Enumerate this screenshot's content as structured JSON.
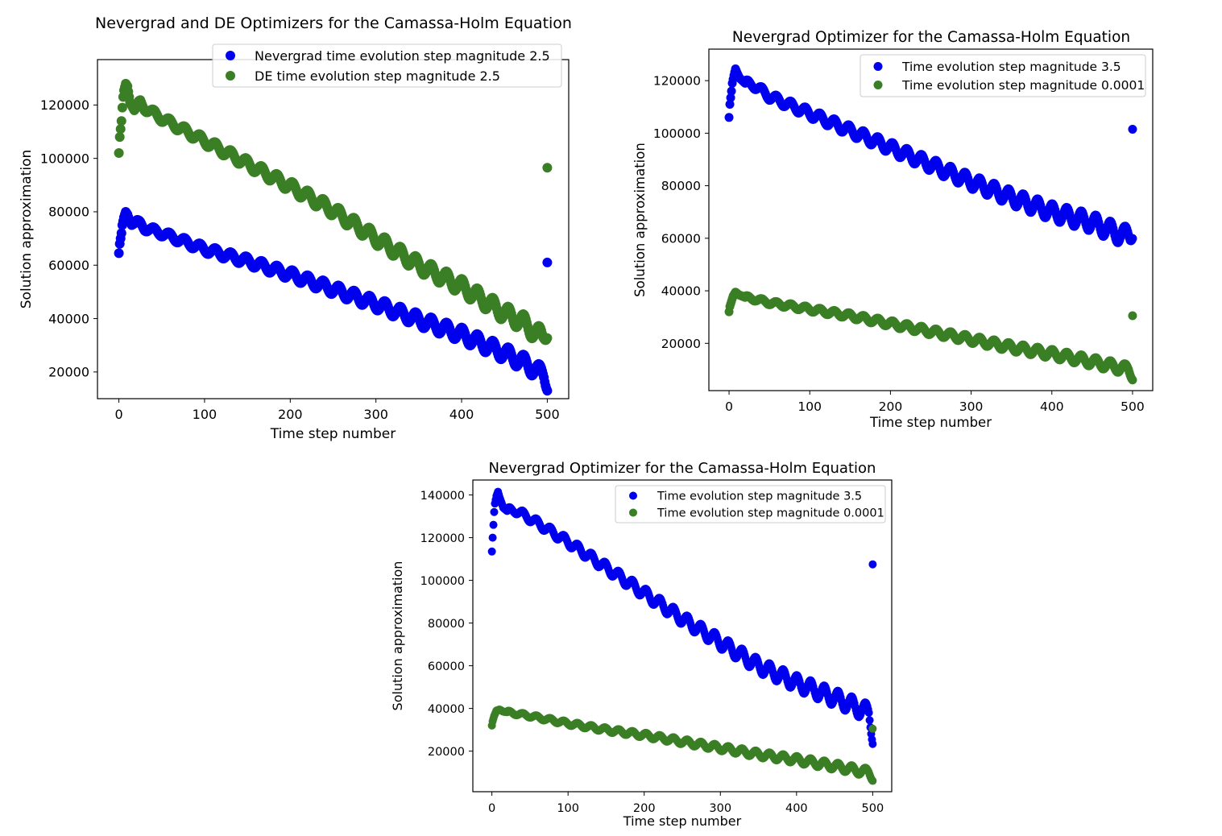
{
  "chart_data": [
    {
      "type": "scatter",
      "title": "Nevergrad  and DE Optimizers for the Camassa-Holm Equation",
      "xlabel": "Time step number",
      "ylabel": "Solution approximation",
      "xlim": [
        -25,
        525
      ],
      "ylim": [
        10000,
        137000
      ],
      "xticks": [
        0,
        100,
        200,
        300,
        400,
        500
      ],
      "yticks": [
        20000,
        40000,
        60000,
        80000,
        100000,
        120000
      ],
      "legend_position": "top-right",
      "series": [
        {
          "name": "Nevergrad time evolution step magnitude 2.5",
          "color": "#0000ee",
          "shape": [
            [
              0,
              64500
            ],
            [
              1,
              68000
            ],
            [
              3,
              72000
            ],
            [
              4,
              75000
            ],
            [
              6,
              78000
            ],
            [
              8,
              80000
            ],
            [
              10,
              79000
            ],
            [
              12,
              77000
            ],
            [
              15,
              75000
            ],
            [
              20,
              76000
            ],
            [
              25,
              75500
            ],
            [
              30,
              74000
            ],
            [
              50,
              72000
            ],
            [
              100,
              66000
            ],
            [
              150,
              61500
            ],
            [
              200,
              56500
            ],
            [
              250,
              51000
            ],
            [
              300,
              45500
            ],
            [
              350,
              39500
            ],
            [
              400,
              34000
            ],
            [
              450,
              27000
            ],
            [
              470,
              24000
            ],
            [
              480,
              22000
            ],
            [
              490,
              20000
            ],
            [
              496,
              19000
            ],
            [
              500,
              16000
            ]
          ],
          "outlier": [
            500,
            61000
          ],
          "wiggle": 1100
        },
        {
          "name": "DE time evolution step magnitude 2.5",
          "color": "#3a7f25",
          "shape": [
            [
              0,
              102000
            ],
            [
              1,
              108000
            ],
            [
              3,
              114000
            ],
            [
              4,
              119000
            ],
            [
              5,
              123000
            ],
            [
              6,
              125500
            ],
            [
              8,
              128000
            ],
            [
              10,
              127000
            ],
            [
              13,
              121000
            ],
            [
              18,
              118000
            ],
            [
              25,
              121000
            ],
            [
              30,
              119000
            ],
            [
              50,
              115000
            ],
            [
              100,
              106500
            ],
            [
              150,
              98000
            ],
            [
              200,
              89500
            ],
            [
              250,
              80500
            ],
            [
              300,
              70000
            ],
            [
              350,
              60000
            ],
            [
              400,
              52000
            ],
            [
              450,
              42000
            ],
            [
              470,
              39000
            ],
            [
              485,
              35000
            ],
            [
              495,
              33000
            ],
            [
              500,
              36000
            ]
          ],
          "outlier": [
            500,
            96500
          ],
          "wiggle": 1200
        }
      ]
    },
    {
      "type": "scatter",
      "title": "Nevergrad Optimizer for the Camassa-Holm Equation",
      "xlabel": "Time step number",
      "ylabel": "Solution approximation",
      "xlim": [
        -25,
        525
      ],
      "ylim": [
        2000,
        132000
      ],
      "xticks": [
        0,
        100,
        200,
        300,
        400,
        500
      ],
      "yticks": [
        20000,
        40000,
        60000,
        80000,
        100000,
        120000
      ],
      "legend_position": "top-right",
      "series": [
        {
          "name": "Time evolution step magnitude 3.5",
          "color": "#0000ee",
          "shape": [
            [
              0,
              106000
            ],
            [
              1,
              111000
            ],
            [
              3,
              116000
            ],
            [
              4,
              119000
            ],
            [
              6,
              122000
            ],
            [
              8,
              124500
            ],
            [
              10,
              123000
            ],
            [
              13,
              121000
            ],
            [
              20,
              119000
            ],
            [
              30,
              118500
            ],
            [
              50,
              114000
            ],
            [
              100,
              107500
            ],
            [
              150,
              101000
            ],
            [
              200,
              94500
            ],
            [
              250,
              88000
            ],
            [
              300,
              81500
            ],
            [
              350,
              75500
            ],
            [
              400,
              70000
            ],
            [
              450,
              66000
            ],
            [
              480,
              62000
            ],
            [
              490,
              61000
            ],
            [
              497,
              61500
            ],
            [
              500,
              63500
            ]
          ],
          "outlier": [
            500,
            101500
          ],
          "wiggle": 1300
        },
        {
          "name": "Time evolution step magnitude 0.0001",
          "color": "#3a7f25",
          "shape": [
            [
              0,
              32000
            ],
            [
              1,
              34000
            ],
            [
              3,
              36000
            ],
            [
              5,
              38000
            ],
            [
              8,
              39500
            ],
            [
              12,
              38500
            ],
            [
              20,
              37500
            ],
            [
              30,
              37000
            ],
            [
              50,
              35500
            ],
            [
              100,
              33000
            ],
            [
              150,
              30500
            ],
            [
              200,
              27500
            ],
            [
              250,
              24500
            ],
            [
              300,
              21500
            ],
            [
              350,
              18500
            ],
            [
              400,
              16000
            ],
            [
              450,
              13000
            ],
            [
              480,
              11000
            ],
            [
              495,
              10000
            ],
            [
              500,
              8000
            ]
          ],
          "outlier": [
            500,
            30500
          ],
          "wiggle": 700
        }
      ]
    },
    {
      "type": "scatter",
      "title": "Nevergrad Optimizer for the Camassa-Holm Equation",
      "xlabel": "Time step number",
      "ylabel": "Solution approximation",
      "xlim": [
        -25,
        525
      ],
      "ylim": [
        1000,
        147000
      ],
      "xticks": [
        0,
        100,
        200,
        300,
        400,
        500
      ],
      "yticks": [
        20000,
        40000,
        60000,
        80000,
        100000,
        120000,
        140000
      ],
      "legend_position": "top-right",
      "series": [
        {
          "name": "Time evolution step magnitude 3.5",
          "color": "#0000ee",
          "shape": [
            [
              0,
              113500
            ],
            [
              1,
              120000
            ],
            [
              2,
              126000
            ],
            [
              3,
              132000
            ],
            [
              4,
              136000
            ],
            [
              6,
              139500
            ],
            [
              8,
              141500
            ],
            [
              10,
              139000
            ],
            [
              15,
              134000
            ],
            [
              20,
              132500
            ],
            [
              30,
              133000
            ],
            [
              50,
              129000
            ],
            [
              100,
              118000
            ],
            [
              150,
              106000
            ],
            [
              200,
              94000
            ],
            [
              250,
              82000
            ],
            [
              300,
              71000
            ],
            [
              350,
              60000
            ],
            [
              400,
              52000
            ],
            [
              450,
              45000
            ],
            [
              470,
              42000
            ],
            [
              485,
              39500
            ],
            [
              495,
              38000
            ],
            [
              500,
              27500
            ]
          ],
          "outlier": [
            500,
            107500
          ],
          "wiggle": 1500
        },
        {
          "name": "Time evolution step magnitude 0.0001",
          "color": "#3a7f25",
          "shape": [
            [
              0,
              32000
            ],
            [
              1,
              34000
            ],
            [
              3,
              36500
            ],
            [
              6,
              39000
            ],
            [
              10,
              39500
            ],
            [
              15,
              38500
            ],
            [
              25,
              38000
            ],
            [
              50,
              36500
            ],
            [
              100,
              33000
            ],
            [
              150,
              30000
            ],
            [
              200,
              27500
            ],
            [
              250,
              24500
            ],
            [
              300,
              21500
            ],
            [
              350,
              18500
            ],
            [
              400,
              16000
            ],
            [
              450,
              13000
            ],
            [
              480,
              11000
            ],
            [
              495,
              10000
            ],
            [
              500,
              8000
            ]
          ],
          "outlier": [
            500,
            30500
          ],
          "wiggle": 700
        }
      ]
    }
  ]
}
